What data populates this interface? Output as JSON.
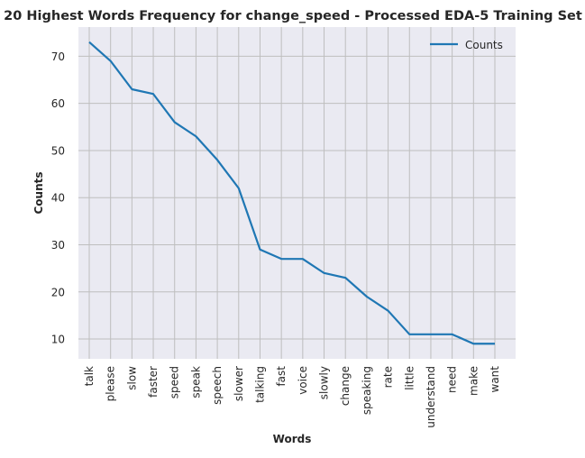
{
  "chart_data": {
    "type": "line",
    "title": "20 Highest Words Frequency for change_speed - Processed EDA-5 Training Set",
    "xlabel": "Words",
    "ylabel": "Counts",
    "categories": [
      "talk",
      "please",
      "slow",
      "faster",
      "speed",
      "speak",
      "speech",
      "slower",
      "talking",
      "fast",
      "voice",
      "slowly",
      "change",
      "speaking",
      "rate",
      "little",
      "understand",
      "need",
      "make",
      "want"
    ],
    "series": [
      {
        "name": "Counts",
        "values": [
          73,
          69,
          63,
          62,
          56,
          53,
          48,
          42,
          29,
          27,
          27,
          24,
          23,
          19,
          16,
          11,
          11,
          11,
          9,
          9
        ]
      }
    ],
    "ylim": [
      5.8,
      76.2
    ],
    "yticks": [
      10,
      20,
      30,
      40,
      50,
      60,
      70
    ],
    "grid": true,
    "legend_position": "top-right",
    "colors": {
      "line": "#1f77b4",
      "plot_background": "#eaeaf2",
      "grid": "#bebebe",
      "text": "#262626"
    }
  }
}
